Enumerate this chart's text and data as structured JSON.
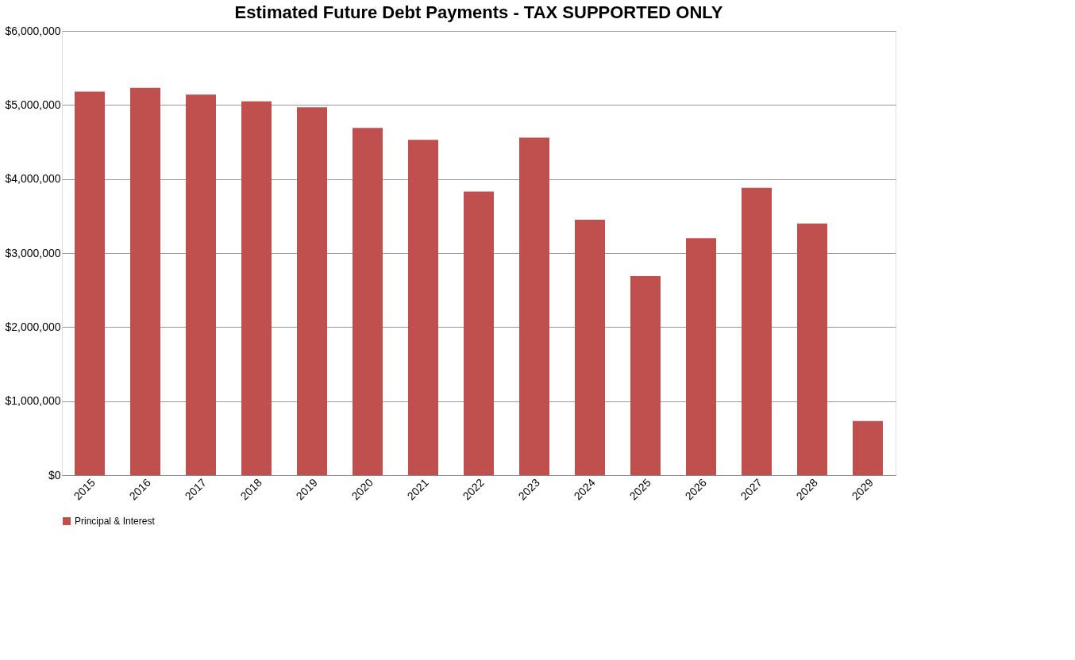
{
  "chart_data": {
    "type": "bar",
    "title": "Estimated Future Debt Payments - TAX SUPPORTED ONLY",
    "categories": [
      "2015",
      "2016",
      "2017",
      "2018",
      "2019",
      "2020",
      "2021",
      "2022",
      "2023",
      "2024",
      "2025",
      "2026",
      "2027",
      "2028",
      "2029"
    ],
    "series": [
      {
        "name": "Principal & Interest",
        "color": "#c0504d",
        "values": [
          5180000,
          5230000,
          5140000,
          5050000,
          4970000,
          4690000,
          4530000,
          3830000,
          4560000,
          3450000,
          2690000,
          3200000,
          3880000,
          3400000,
          730000
        ]
      }
    ],
    "ylim": [
      0,
      6000000
    ],
    "yticks": [
      {
        "value": 0,
        "label": "$0"
      },
      {
        "value": 1000000,
        "label": "$1,000,000"
      },
      {
        "value": 2000000,
        "label": "$2,000,000"
      },
      {
        "value": 3000000,
        "label": "$3,000,000"
      },
      {
        "value": 4000000,
        "label": "$4,000,000"
      },
      {
        "value": 5000000,
        "label": "$5,000,000"
      },
      {
        "value": 6000000,
        "label": "$6,000,000"
      }
    ],
    "grid": "y",
    "legend": "bottom"
  }
}
